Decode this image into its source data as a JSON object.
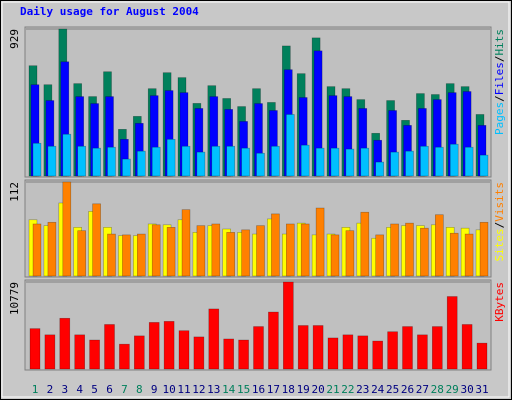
{
  "chart_data": [
    {
      "type": "bar",
      "title": "Daily usage for August 2004",
      "categories": [
        "1",
        "2",
        "3",
        "4",
        "5",
        "6",
        "7",
        "8",
        "9",
        "10",
        "11",
        "12",
        "13",
        "14",
        "15",
        "16",
        "17",
        "18",
        "19",
        "20",
        "21",
        "22",
        "23",
        "24",
        "25",
        "26",
        "27",
        "28",
        "29",
        "30",
        "31"
      ],
      "category_label_colors": [
        "#00805c",
        "#000080",
        "#000080",
        "#000080",
        "#000080",
        "#000080",
        "#00805c",
        "#00805c",
        "#000080",
        "#000080",
        "#000080",
        "#000080",
        "#000080",
        "#00805c",
        "#00805c",
        "#000080",
        "#000080",
        "#000080",
        "#000080",
        "#000080",
        "#00805c",
        "#00805c",
        "#000080",
        "#000080",
        "#000080",
        "#000080",
        "#000080",
        "#00805c",
        "#00805c",
        "#000080",
        "#000080"
      ],
      "legend_separator": "/",
      "ylim": [
        0,
        929
      ],
      "yticks": [
        929
      ],
      "grid": true,
      "series": [
        {
          "name": "Pages",
          "color": "#00c0ff",
          "values": [
            207,
            188,
            264,
            188,
            176,
            182,
            107,
            157,
            182,
            232,
            188,
            151,
            188,
            188,
            176,
            144,
            188,
            389,
            195,
            176,
            176,
            170,
            176,
            88,
            151,
            157,
            188,
            182,
            201,
            182,
            132
          ]
        },
        {
          "name": "Files",
          "color": "#0000ff",
          "values": [
            577,
            477,
            722,
            502,
            458,
            502,
            232,
            333,
            508,
            540,
            527,
            427,
            502,
            421,
            345,
            458,
            414,
            672,
            496,
            791,
            508,
            502,
            427,
            226,
            414,
            320,
            427,
            483,
            527,
            534,
            320
          ]
        },
        {
          "name": "Hits",
          "color": "#00805c",
          "values": [
            697,
            577,
            929,
            584,
            502,
            659,
            295,
            377,
            552,
            653,
            622,
            459,
            571,
            490,
            439,
            552,
            465,
            822,
            647,
            873,
            565,
            552,
            483,
            270,
            477,
            352,
            521,
            515,
            584,
            565,
            389
          ]
        }
      ]
    },
    {
      "type": "bar",
      "ylim": [
        0,
        112
      ],
      "yticks": [
        112
      ],
      "grid": true,
      "series": [
        {
          "name": "Sites",
          "color": "#ffff00",
          "values": [
            67,
            60,
            87,
            58,
            77,
            58,
            48,
            48,
            62,
            61,
            67,
            52,
            60,
            56,
            52,
            50,
            68,
            50,
            63,
            49,
            50,
            58,
            63,
            45,
            58,
            60,
            60,
            61,
            58,
            57,
            55
          ]
        },
        {
          "name": "Visits",
          "color": "#ff8000",
          "values": [
            62,
            64,
            112,
            54,
            86,
            50,
            49,
            50,
            61,
            58,
            79,
            60,
            62,
            52,
            55,
            60,
            74,
            62,
            62,
            81,
            49,
            54,
            76,
            49,
            62,
            63,
            57,
            73,
            51,
            50,
            64
          ]
        }
      ]
    },
    {
      "type": "bar",
      "ylim": [
        0,
        10779
      ],
      "yticks": [
        10779
      ],
      "grid": true,
      "series": [
        {
          "name": "KBytes",
          "color": "#ff0000",
          "values": [
            5004,
            4234,
            6287,
            4234,
            3592,
            5517,
            3079,
            4106,
            5774,
            5902,
            4747,
            3977,
            7441,
            3721,
            3592,
            5260,
            7057,
            10779,
            5389,
            5389,
            3849,
            4234,
            4106,
            3464,
            4619,
            5260,
            4234,
            5260,
            8981,
            5517,
            3208
          ]
        }
      ]
    }
  ]
}
